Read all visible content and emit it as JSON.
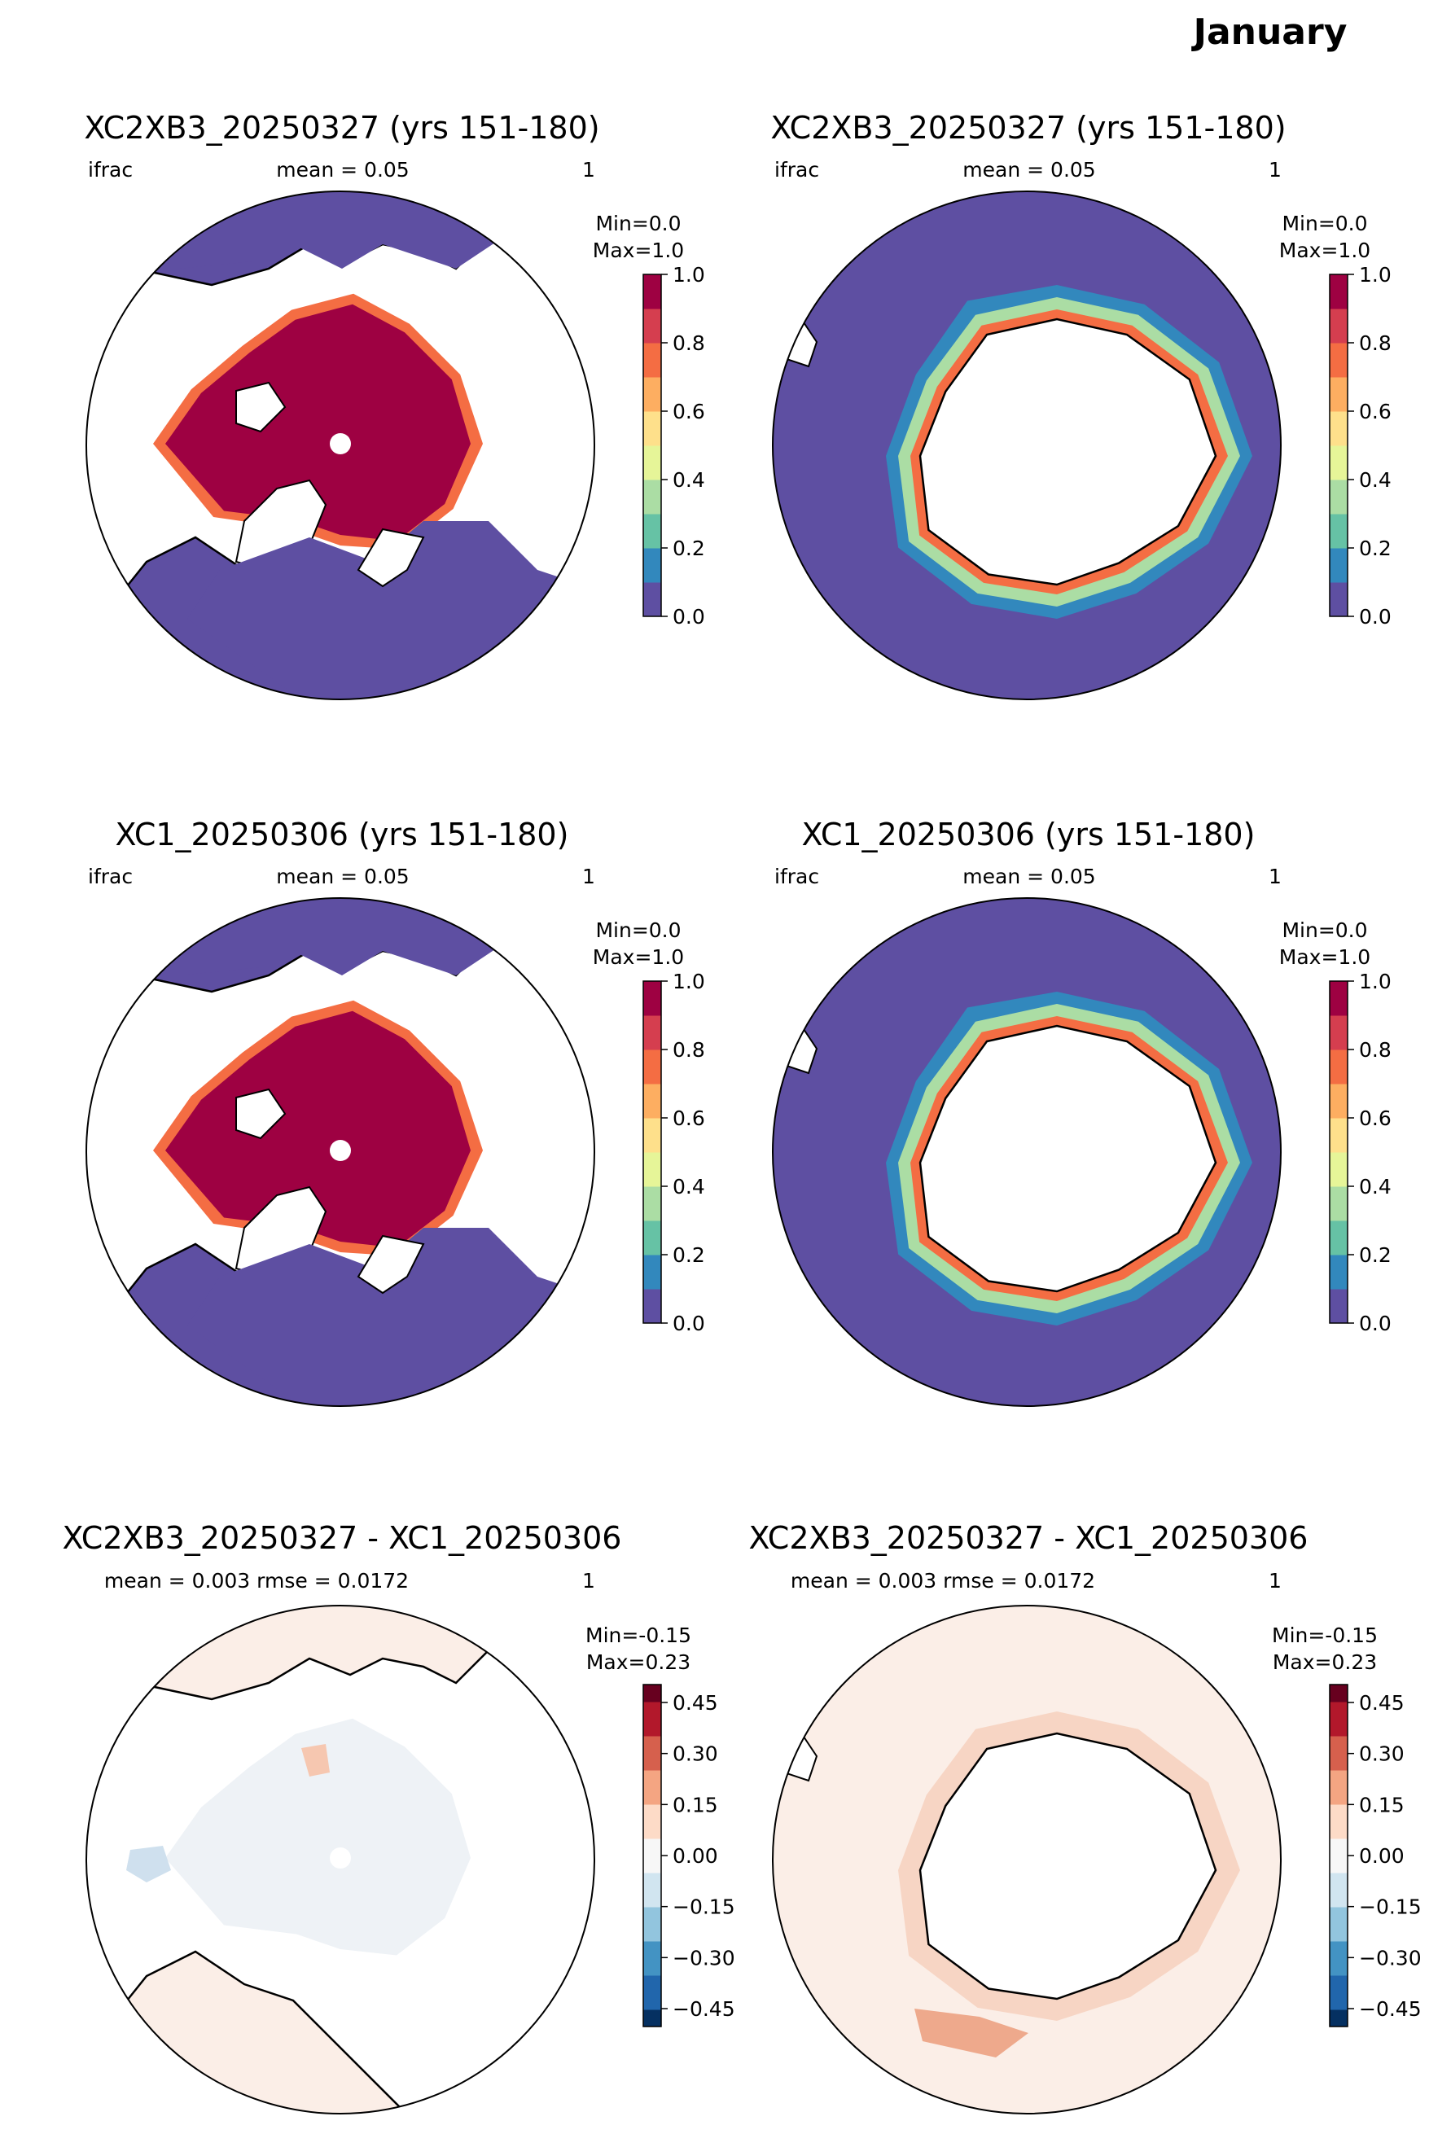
{
  "figure": {
    "title": "January"
  },
  "colors": {
    "seq_scale": [
      "#5e4fa2",
      "#3288bd",
      "#66c2a5",
      "#abdda4",
      "#e6f598",
      "#fee08b",
      "#fdae61",
      "#f46d43",
      "#d53e4f",
      "#9e0142"
    ],
    "div_scale": [
      "#053061",
      "#2166ac",
      "#4393c3",
      "#92c5de",
      "#d1e5f0",
      "#f7f7f7",
      "#fddbc7",
      "#f4a582",
      "#d6604d",
      "#b2182b",
      "#67001f"
    ],
    "ocean_low": "#5e4fa2",
    "ice_high": "#9e0142",
    "diff_background": "#fbeee7",
    "land": "#ffffff"
  },
  "panels": [
    {
      "hemisphere": "north",
      "kind": "field",
      "title": "XC2XB3_20250327 (yrs 151-180)",
      "left_label": "ifrac",
      "center_label": "mean = 0.05",
      "right_label": "1",
      "minmax_line1": "Min=0.0",
      "minmax_line2": "Max=1.0",
      "colorbar_ticks": [
        "0.0",
        "0.2",
        "0.4",
        "0.6",
        "0.8",
        "1.0"
      ]
    },
    {
      "hemisphere": "south",
      "kind": "field",
      "title": "XC2XB3_20250327 (yrs 151-180)",
      "left_label": "ifrac",
      "center_label": "mean = 0.05",
      "right_label": "1",
      "minmax_line1": "Min=0.0",
      "minmax_line2": "Max=1.0",
      "colorbar_ticks": [
        "0.0",
        "0.2",
        "0.4",
        "0.6",
        "0.8",
        "1.0"
      ]
    },
    {
      "hemisphere": "north",
      "kind": "field",
      "title": "XC1_20250306 (yrs 151-180)",
      "left_label": "ifrac",
      "center_label": "mean = 0.05",
      "right_label": "1",
      "minmax_line1": "Min=0.0",
      "minmax_line2": "Max=1.0",
      "colorbar_ticks": [
        "0.0",
        "0.2",
        "0.4",
        "0.6",
        "0.8",
        "1.0"
      ]
    },
    {
      "hemisphere": "south",
      "kind": "field",
      "title": "XC1_20250306 (yrs 151-180)",
      "left_label": "ifrac",
      "center_label": "mean = 0.05",
      "right_label": "1",
      "minmax_line1": "Min=0.0",
      "minmax_line2": "Max=1.0",
      "colorbar_ticks": [
        "0.0",
        "0.2",
        "0.4",
        "0.6",
        "0.8",
        "1.0"
      ]
    },
    {
      "hemisphere": "north",
      "kind": "diff",
      "title": "XC2XB3_20250327 - XC1_20250306",
      "left_label": "",
      "center_label": "mean = 0.003 rmse = 0.0172",
      "right_label": "1",
      "minmax_line1": "Min=-0.15",
      "minmax_line2": "Max=0.23",
      "colorbar_ticks": [
        "−0.45",
        "−0.30",
        "−0.15",
        "0.00",
        "0.15",
        "0.30",
        "0.45"
      ]
    },
    {
      "hemisphere": "south",
      "kind": "diff",
      "title": "XC2XB3_20250327 - XC1_20250306",
      "left_label": "",
      "center_label": "mean = 0.003 rmse = 0.0172",
      "right_label": "1",
      "minmax_line1": "Min=-0.15",
      "minmax_line2": "Max=0.23",
      "colorbar_ticks": [
        "−0.45",
        "−0.30",
        "−0.15",
        "0.00",
        "0.15",
        "0.30",
        "0.45"
      ]
    }
  ]
}
